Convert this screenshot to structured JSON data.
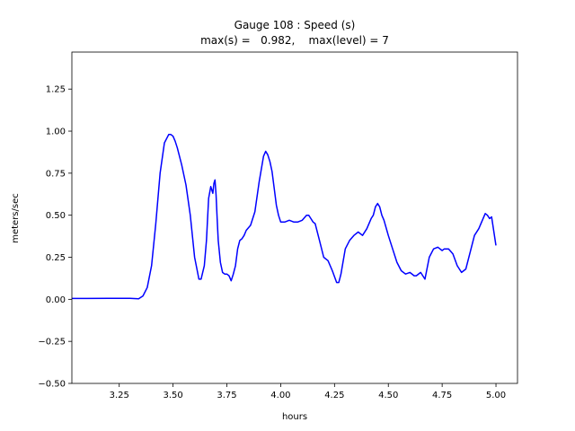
{
  "chart_data": {
    "type": "line",
    "title_line1": "Gauge 108 : Speed (s)",
    "title_line2": "max(s) =   0.982,    max(level) = 7",
    "xlabel": "hours",
    "ylabel": "meters/sec",
    "xlim": [
      3.03,
      5.1
    ],
    "ylim": [
      -0.5,
      1.47
    ],
    "xticks": [
      3.25,
      3.5,
      3.75,
      4.0,
      4.25,
      4.5,
      4.75,
      5.0
    ],
    "xtick_labels": [
      "3.25",
      "3.50",
      "3.75",
      "4.00",
      "4.25",
      "4.50",
      "4.75",
      "5.00"
    ],
    "yticks": [
      -0.5,
      -0.25,
      0.0,
      0.25,
      0.5,
      0.75,
      1.0,
      1.25
    ],
    "ytick_labels": [
      "−0.50",
      "−0.25",
      "0.00",
      "0.25",
      "0.50",
      "0.75",
      "1.00",
      "1.25"
    ],
    "grid": false,
    "series": [
      {
        "color": "#0000ff",
        "x": [
          3.03,
          3.1,
          3.2,
          3.3,
          3.34,
          3.36,
          3.38,
          3.4,
          3.42,
          3.44,
          3.46,
          3.48,
          3.49,
          3.5,
          3.51,
          3.52,
          3.54,
          3.56,
          3.58,
          3.6,
          3.62,
          3.63,
          3.645,
          3.655,
          3.665,
          3.675,
          3.685,
          3.69,
          3.695,
          3.7,
          3.705,
          3.71,
          3.72,
          3.73,
          3.74,
          3.75,
          3.76,
          3.77,
          3.78,
          3.79,
          3.8,
          3.81,
          3.82,
          3.83,
          3.84,
          3.86,
          3.88,
          3.9,
          3.92,
          3.93,
          3.94,
          3.95,
          3.96,
          3.97,
          3.98,
          3.99,
          4.0,
          4.02,
          4.04,
          4.06,
          4.08,
          4.1,
          4.12,
          4.13,
          4.14,
          4.15,
          4.16,
          4.18,
          4.2,
          4.22,
          4.24,
          4.26,
          4.27,
          4.28,
          4.3,
          4.32,
          4.34,
          4.36,
          4.38,
          4.4,
          4.42,
          4.43,
          4.44,
          4.45,
          4.46,
          4.47,
          4.48,
          4.5,
          4.52,
          4.54,
          4.56,
          4.58,
          4.6,
          4.62,
          4.63,
          4.65,
          4.67,
          4.69,
          4.71,
          4.73,
          4.75,
          4.76,
          4.78,
          4.8,
          4.82,
          4.84,
          4.86,
          4.88,
          4.9,
          4.92,
          4.94,
          4.95,
          4.96,
          4.97,
          4.98,
          5.0
        ],
        "y": [
          0.005,
          0.005,
          0.006,
          0.006,
          0.003,
          0.02,
          0.07,
          0.2,
          0.45,
          0.75,
          0.93,
          0.98,
          0.98,
          0.97,
          0.94,
          0.9,
          0.8,
          0.68,
          0.5,
          0.25,
          0.12,
          0.12,
          0.2,
          0.35,
          0.6,
          0.67,
          0.63,
          0.69,
          0.71,
          0.62,
          0.48,
          0.35,
          0.22,
          0.16,
          0.15,
          0.15,
          0.14,
          0.11,
          0.15,
          0.2,
          0.3,
          0.35,
          0.36,
          0.38,
          0.41,
          0.44,
          0.52,
          0.7,
          0.85,
          0.88,
          0.86,
          0.82,
          0.76,
          0.66,
          0.56,
          0.5,
          0.46,
          0.46,
          0.47,
          0.46,
          0.46,
          0.47,
          0.5,
          0.5,
          0.48,
          0.46,
          0.45,
          0.35,
          0.25,
          0.23,
          0.17,
          0.1,
          0.1,
          0.15,
          0.3,
          0.35,
          0.38,
          0.4,
          0.38,
          0.42,
          0.48,
          0.5,
          0.55,
          0.57,
          0.55,
          0.5,
          0.47,
          0.38,
          0.3,
          0.22,
          0.17,
          0.15,
          0.16,
          0.14,
          0.14,
          0.16,
          0.12,
          0.25,
          0.3,
          0.31,
          0.29,
          0.3,
          0.3,
          0.27,
          0.2,
          0.16,
          0.18,
          0.28,
          0.38,
          0.42,
          0.48,
          0.51,
          0.5,
          0.48,
          0.49,
          0.32
        ]
      }
    ]
  }
}
